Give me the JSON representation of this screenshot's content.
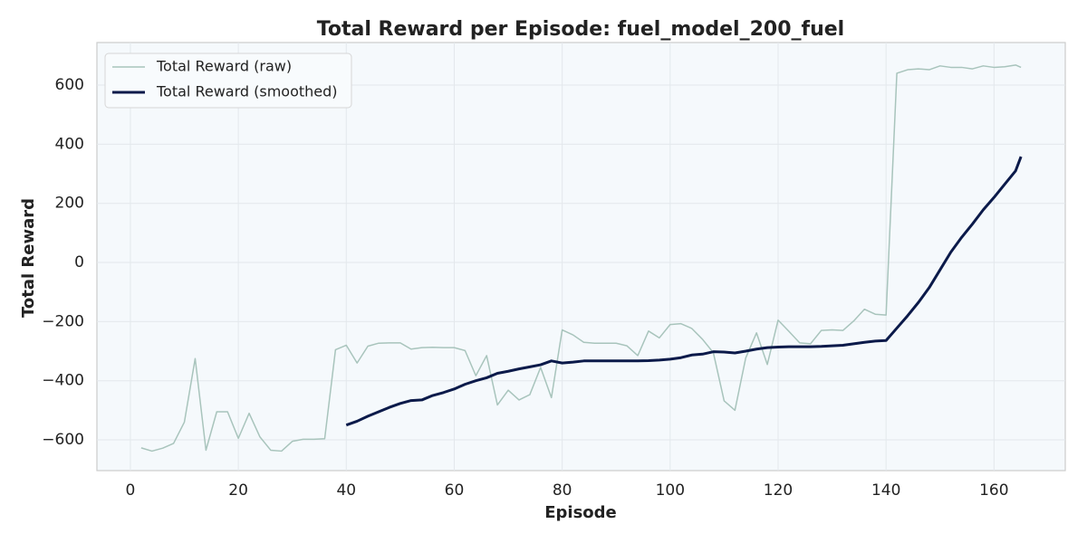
{
  "chart_data": {
    "type": "line",
    "title": "Total Reward per Episode: fuel_model_200_fuel",
    "x_label": "Episode",
    "y_label": "Total Reward",
    "x": [
      2,
      4,
      6,
      8,
      10,
      12,
      14,
      16,
      18,
      20,
      22,
      24,
      26,
      28,
      30,
      32,
      34,
      36,
      38,
      40,
      42,
      44,
      46,
      48,
      50,
      52,
      54,
      56,
      58,
      60,
      62,
      64,
      66,
      68,
      70,
      72,
      74,
      76,
      78,
      80,
      82,
      84,
      86,
      88,
      90,
      92,
      94,
      96,
      98,
      100,
      102,
      104,
      106,
      108,
      110,
      112,
      114,
      116,
      118,
      120,
      122,
      124,
      126,
      128,
      130,
      132,
      134,
      136,
      138,
      140,
      142,
      144,
      146,
      148,
      150,
      152,
      154,
      156,
      158,
      160,
      162,
      164,
      165
    ],
    "series": [
      {
        "name": "Total Reward (raw)",
        "color": "#a8c4bc",
        "width": 1.5,
        "values": [
          -627,
          -638,
          -628,
          -612,
          -540,
          -325,
          -635,
          -505,
          -505,
          -595,
          -510,
          -590,
          -635,
          -638,
          -605,
          -598,
          -598,
          -596,
          -295,
          -280,
          -340,
          -283,
          -273,
          -272,
          -272,
          -293,
          -288,
          -287,
          -288,
          -288,
          -298,
          -383,
          -315,
          -482,
          -432,
          -465,
          -447,
          -355,
          -457,
          -228,
          -245,
          -270,
          -273,
          -273,
          -273,
          -282,
          -315,
          -232,
          -255,
          -210,
          -207,
          -223,
          -260,
          -305,
          -468,
          -500,
          -323,
          -238,
          -345,
          -195,
          -233,
          -272,
          -275,
          -230,
          -228,
          -230,
          -198,
          -158,
          -175,
          -178,
          640,
          652,
          655,
          652,
          665,
          660,
          660,
          655,
          665,
          660,
          662,
          668,
          660
        ]
      },
      {
        "name": "Total Reward (smoothed)",
        "color": "#0b1a4a",
        "width": 3,
        "values": [
          null,
          null,
          null,
          null,
          null,
          null,
          null,
          null,
          null,
          null,
          null,
          null,
          null,
          null,
          null,
          null,
          null,
          null,
          null,
          -550,
          -537,
          -520,
          -505,
          -490,
          -477,
          -467,
          -465,
          -450,
          -440,
          -428,
          -412,
          -400,
          -390,
          -375,
          -368,
          -360,
          -353,
          -346,
          -333,
          -340,
          -337,
          -333,
          -333,
          -333,
          -333,
          -333,
          -333,
          -332,
          -330,
          -327,
          -322,
          -313,
          -310,
          -302,
          -303,
          -306,
          -300,
          -293,
          -288,
          -286,
          -285,
          -285,
          -285,
          -284,
          -282,
          -280,
          -275,
          -270,
          -266,
          -264,
          -222,
          -180,
          -135,
          -85,
          -25,
          35,
          85,
          130,
          178,
          220,
          265,
          310,
          358
        ]
      }
    ],
    "xlim": [
      -6.2,
      173.2
    ],
    "ylim": [
      -704,
      744
    ],
    "xticks": [
      0,
      20,
      40,
      60,
      80,
      100,
      120,
      140,
      160
    ],
    "yticks": [
      {
        "value": -600,
        "label": "−600"
      },
      {
        "value": -400,
        "label": "−400"
      },
      {
        "value": -200,
        "label": "−200"
      },
      0,
      200,
      400,
      600
    ],
    "grid": true,
    "legend": "upper left"
  }
}
